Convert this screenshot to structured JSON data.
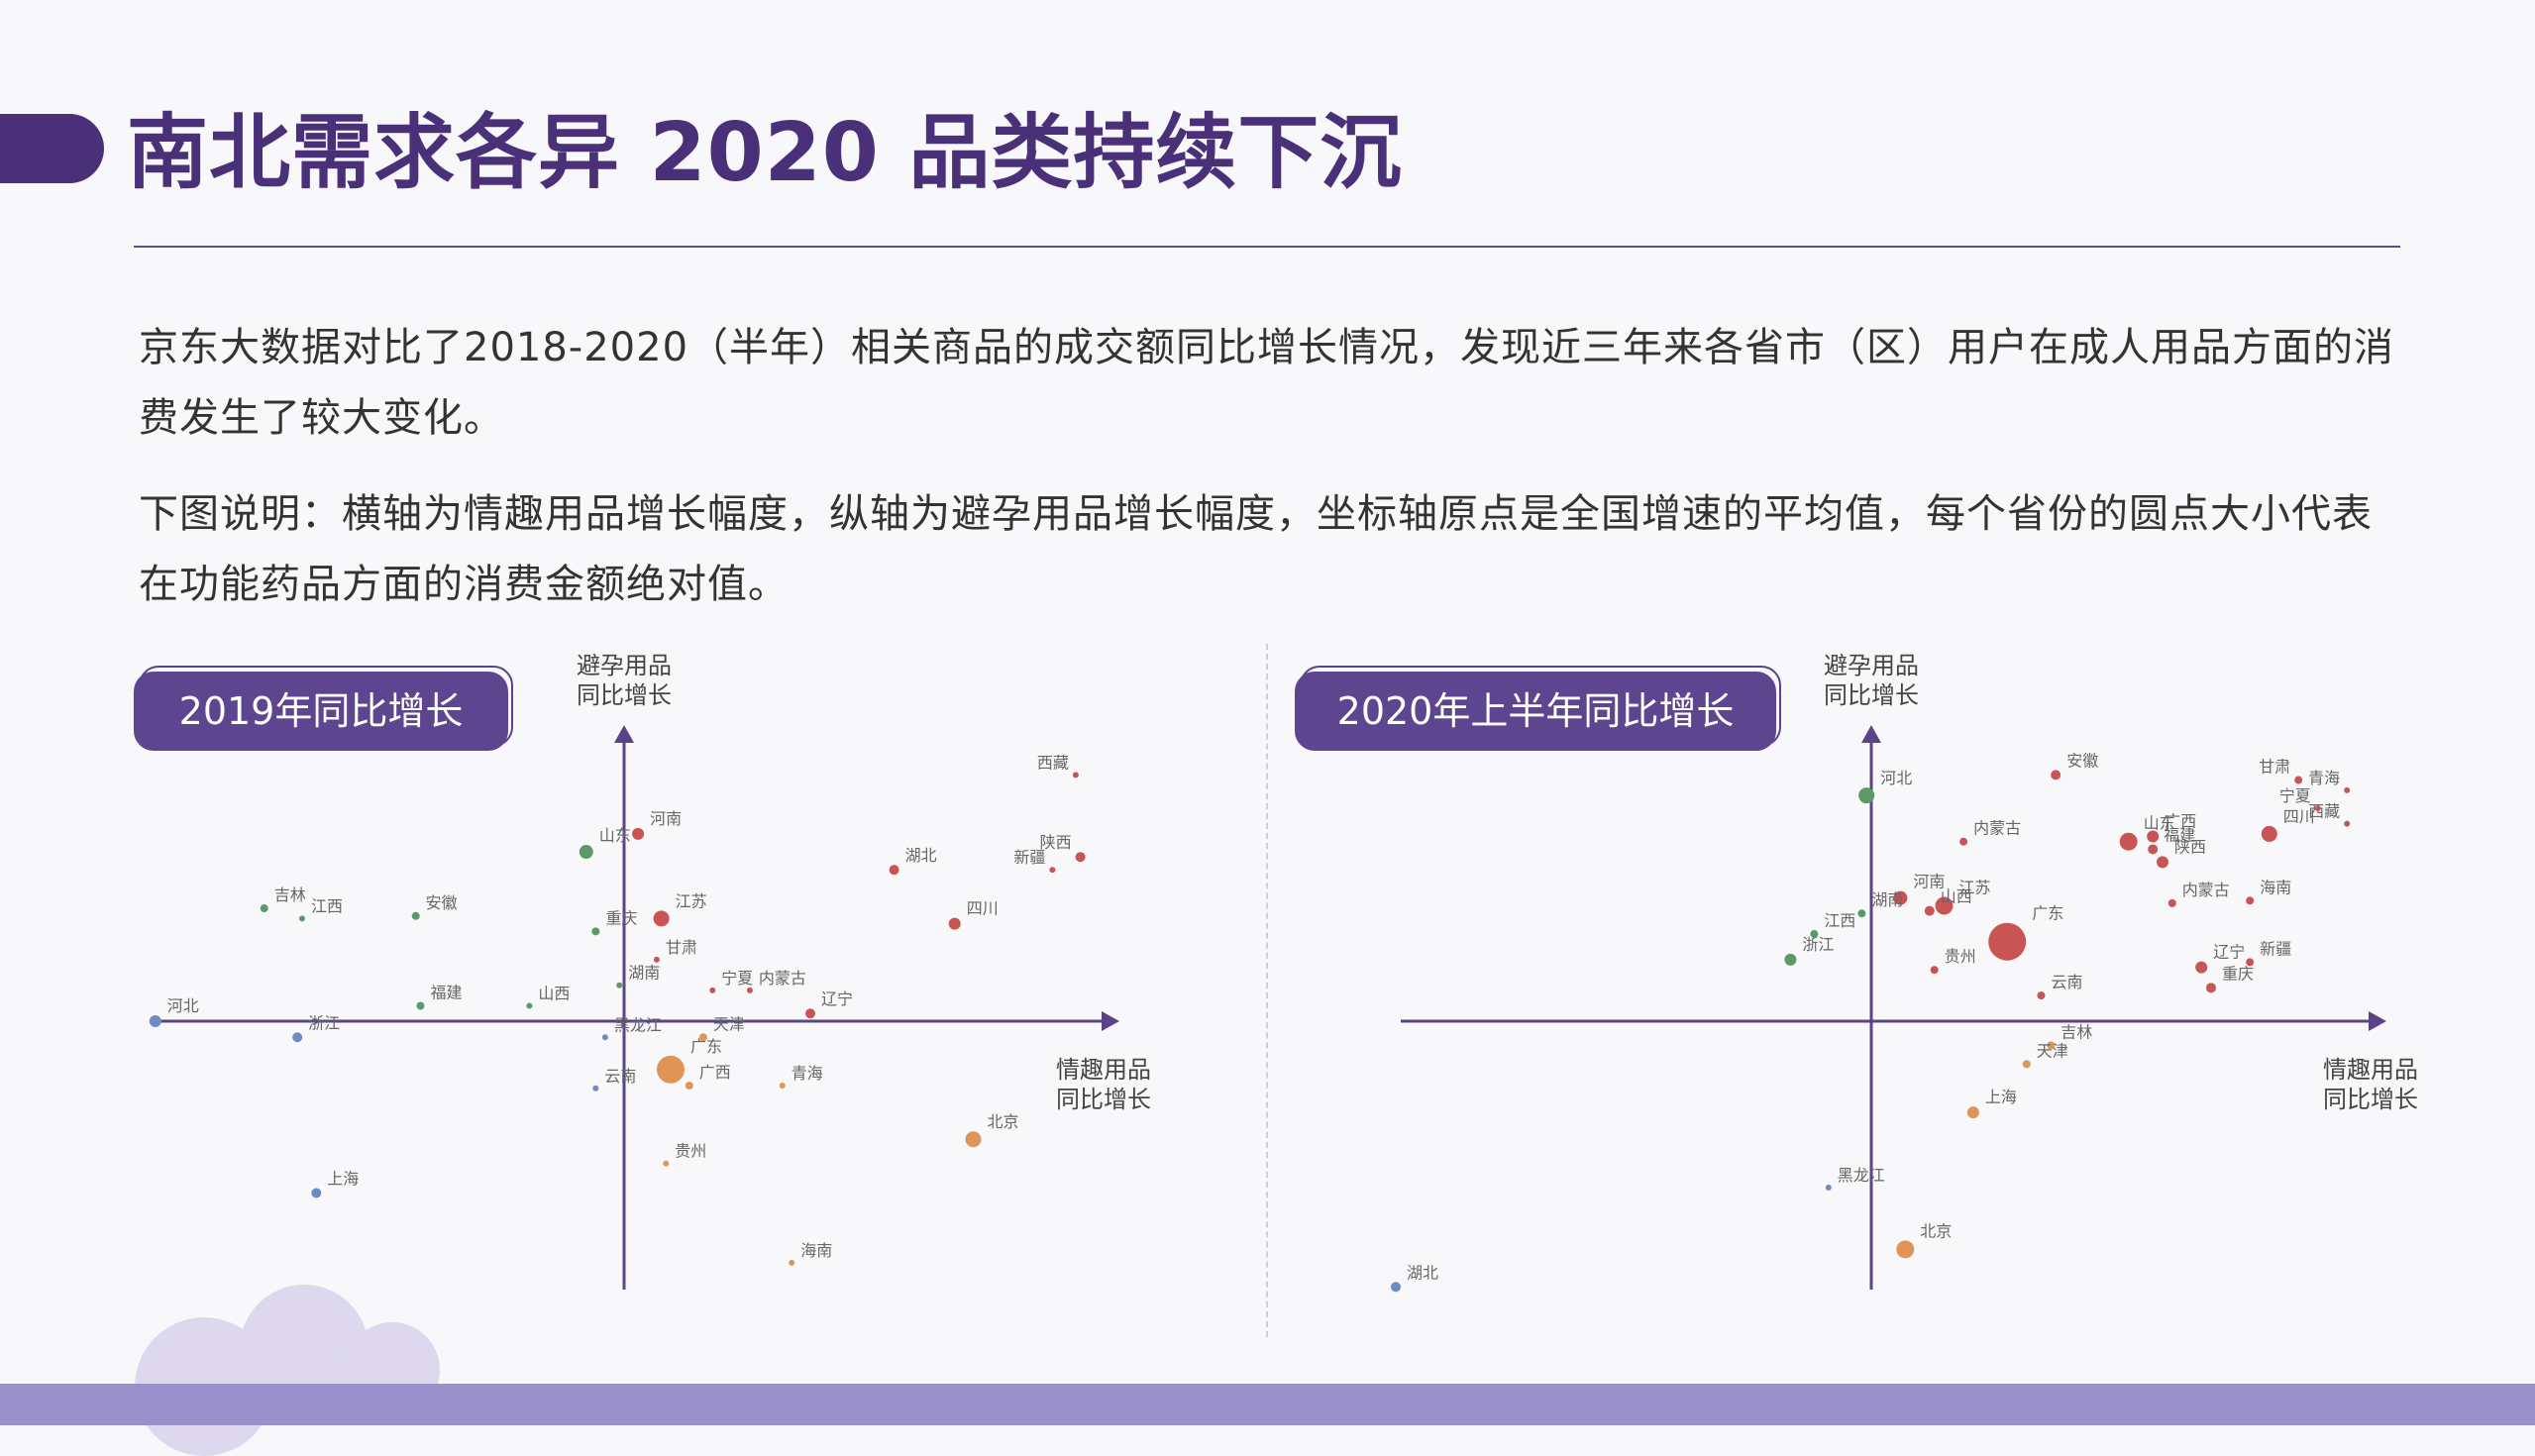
{
  "page": {
    "title": "南北需求各异 2020 品类持续下沉",
    "paragraph1": "京东大数据对比了2018-2020（半年）相关商品的成交额同比增长情况，发现近三年来各省市（区）用户在成人用品方面的消费发生了较大变化。",
    "paragraph2": "下图说明：横轴为情趣用品增长幅度，纵轴为避孕用品增长幅度，坐标轴原点是全国增速的平均值，每个省份的圆点大小代表在功能药品方面的消费金额绝对值。"
  },
  "colors": {
    "title": "#4a3079",
    "axis": "#5b4387",
    "red": "#c85454",
    "green": "#5a9a66",
    "blue": "#6d8cc4",
    "orange": "#e09558",
    "band": "#9a90cc"
  },
  "chart_data": [
    {
      "type": "scatter",
      "title": "2019年同比增长",
      "xlabel": [
        "情趣用品",
        "同比增长"
      ],
      "ylabel": [
        "避孕用品",
        "同比增长"
      ],
      "xlim": [
        -100,
        100
      ],
      "ylim": [
        -100,
        100
      ],
      "points": [
        {
          "name": "西藏",
          "x": 97,
          "y": 96,
          "size": 3,
          "color": "red"
        },
        {
          "name": "陕西",
          "x": 98,
          "y": 64,
          "size": 5,
          "color": "red"
        },
        {
          "name": "新疆",
          "x": 92,
          "y": 59,
          "size": 3,
          "color": "red"
        },
        {
          "name": "湖北",
          "x": 58,
          "y": 59,
          "size": 5,
          "color": "red"
        },
        {
          "name": "四川",
          "x": 71,
          "y": 38,
          "size": 6,
          "color": "red"
        },
        {
          "name": "河南",
          "x": 3,
          "y": 73,
          "size": 6,
          "color": "red"
        },
        {
          "name": "江苏",
          "x": 8,
          "y": 40,
          "size": 8,
          "color": "red"
        },
        {
          "name": "甘肃",
          "x": 7,
          "y": 24,
          "size": 3,
          "color": "red"
        },
        {
          "name": "宁夏",
          "x": 19,
          "y": 12,
          "size": 3,
          "color": "red"
        },
        {
          "name": "内蒙古",
          "x": 27,
          "y": 12,
          "size": 3,
          "color": "red"
        },
        {
          "name": "辽宁",
          "x": 40,
          "y": 3,
          "size": 5,
          "color": "red"
        },
        {
          "name": "山东",
          "x": -8,
          "y": 66,
          "size": 7,
          "color": "green"
        },
        {
          "name": "重庆",
          "x": -6,
          "y": 35,
          "size": 4,
          "color": "green"
        },
        {
          "name": "湖南",
          "x": -1,
          "y": 14,
          "size": 3,
          "color": "green"
        },
        {
          "name": "吉林",
          "x": -76,
          "y": 44,
          "size": 4,
          "color": "green"
        },
        {
          "name": "江西",
          "x": -68,
          "y": 40,
          "size": 3,
          "color": "green"
        },
        {
          "name": "安徽",
          "x": -44,
          "y": 41,
          "size": 4,
          "color": "green"
        },
        {
          "name": "福建",
          "x": -43,
          "y": 6,
          "size": 4,
          "color": "green"
        },
        {
          "name": "山西",
          "x": -20,
          "y": 6,
          "size": 3,
          "color": "green"
        },
        {
          "name": "河北",
          "x": -99,
          "y": 0,
          "size": 6,
          "color": "blue"
        },
        {
          "name": "浙江",
          "x": -69,
          "y": -6,
          "size": 5,
          "color": "blue"
        },
        {
          "name": "黑龙江",
          "x": -4,
          "y": -6,
          "size": 3,
          "color": "blue"
        },
        {
          "name": "云南",
          "x": -6,
          "y": -25,
          "size": 3,
          "color": "blue"
        },
        {
          "name": "上海",
          "x": -65,
          "y": -64,
          "size": 5,
          "color": "blue"
        },
        {
          "name": "天津",
          "x": 17,
          "y": -6,
          "size": 4,
          "color": "orange"
        },
        {
          "name": "广东",
          "x": 10,
          "y": -18,
          "size": 14,
          "color": "orange"
        },
        {
          "name": "广西",
          "x": 14,
          "y": -24,
          "size": 4,
          "color": "orange"
        },
        {
          "name": "青海",
          "x": 34,
          "y": -24,
          "size": 3,
          "color": "orange"
        },
        {
          "name": "北京",
          "x": 75,
          "y": -44,
          "size": 8,
          "color": "orange"
        },
        {
          "name": "贵州",
          "x": 9,
          "y": -53,
          "size": 3,
          "color": "orange"
        },
        {
          "name": "海南",
          "x": 36,
          "y": -90,
          "size": 3,
          "color": "orange"
        }
      ]
    },
    {
      "type": "scatter",
      "title": "2020年上半年同比增长",
      "xlabel": [
        "情趣用品",
        "同比增长"
      ],
      "ylabel": [
        "避孕用品",
        "同比增长"
      ],
      "xlim": [
        -100,
        100
      ],
      "ylim": [
        -100,
        100
      ],
      "points": [
        {
          "name": "安徽",
          "x": 38,
          "y": 96,
          "size": 5,
          "color": "red"
        },
        {
          "name": "甘肃",
          "x": 88,
          "y": 94,
          "size": 4,
          "color": "red"
        },
        {
          "name": "青海",
          "x": 98,
          "y": 90,
          "size": 3,
          "color": "red"
        },
        {
          "name": "西藏",
          "x": 98,
          "y": 77,
          "size": 3,
          "color": "red"
        },
        {
          "name": "宁夏",
          "x": 92,
          "y": 83,
          "size": 3,
          "color": "red"
        },
        {
          "name": "四川",
          "x": 82,
          "y": 73,
          "size": 8,
          "color": "red"
        },
        {
          "name": "山东",
          "x": 53,
          "y": 70,
          "size": 9,
          "color": "red"
        },
        {
          "name": "广西",
          "x": 58,
          "y": 72,
          "size": 6,
          "color": "red"
        },
        {
          "name": "福建",
          "x": 58,
          "y": 67,
          "size": 5,
          "color": "red"
        },
        {
          "name": "陕西",
          "x": 60,
          "y": 62,
          "size": 6,
          "color": "red"
        },
        {
          "name": "内蒙古",
          "x": 19,
          "y": 70,
          "size": 4,
          "color": "red"
        },
        {
          "name": "内蒙古",
          "x": 62,
          "y": 46,
          "size": 4,
          "color": "red"
        },
        {
          "name": "海南",
          "x": 78,
          "y": 47,
          "size": 4,
          "color": "red"
        },
        {
          "name": "河南",
          "x": 6,
          "y": 48,
          "size": 7,
          "color": "red"
        },
        {
          "name": "江苏",
          "x": 15,
          "y": 45,
          "size": 9,
          "color": "red"
        },
        {
          "name": "山西",
          "x": 12,
          "y": 43,
          "size": 5,
          "color": "red"
        },
        {
          "name": "广东",
          "x": 28,
          "y": 31,
          "size": 19,
          "color": "red"
        },
        {
          "name": "辽宁",
          "x": 68,
          "y": 21,
          "size": 6,
          "color": "red"
        },
        {
          "name": "新疆",
          "x": 78,
          "y": 23,
          "size": 4,
          "color": "red"
        },
        {
          "name": "重庆",
          "x": 70,
          "y": 13,
          "size": 5,
          "color": "red"
        },
        {
          "name": "贵州",
          "x": 13,
          "y": 20,
          "size": 4,
          "color": "red"
        },
        {
          "name": "云南",
          "x": 35,
          "y": 10,
          "size": 4,
          "color": "red"
        },
        {
          "name": "河北",
          "x": -1,
          "y": 88,
          "size": 8,
          "color": "green"
        },
        {
          "name": "湖南",
          "x": -2,
          "y": 42,
          "size": 4,
          "color": "green"
        },
        {
          "name": "江西",
          "x": -12,
          "y": 34,
          "size": 4,
          "color": "green"
        },
        {
          "name": "浙江",
          "x": -17,
          "y": 24,
          "size": 6,
          "color": "green"
        },
        {
          "name": "吉林",
          "x": 37,
          "y": -9,
          "size": 4,
          "color": "orange"
        },
        {
          "name": "天津",
          "x": 32,
          "y": -16,
          "size": 4,
          "color": "orange"
        },
        {
          "name": "上海",
          "x": 21,
          "y": -34,
          "size": 6,
          "color": "orange"
        },
        {
          "name": "北京",
          "x": 7,
          "y": -85,
          "size": 9,
          "color": "orange"
        },
        {
          "name": "黑龙江",
          "x": -9,
          "y": -62,
          "size": 3,
          "color": "blue"
        },
        {
          "name": "湖北",
          "x": -100,
          "y": -99,
          "size": 5,
          "color": "blue"
        }
      ]
    }
  ]
}
